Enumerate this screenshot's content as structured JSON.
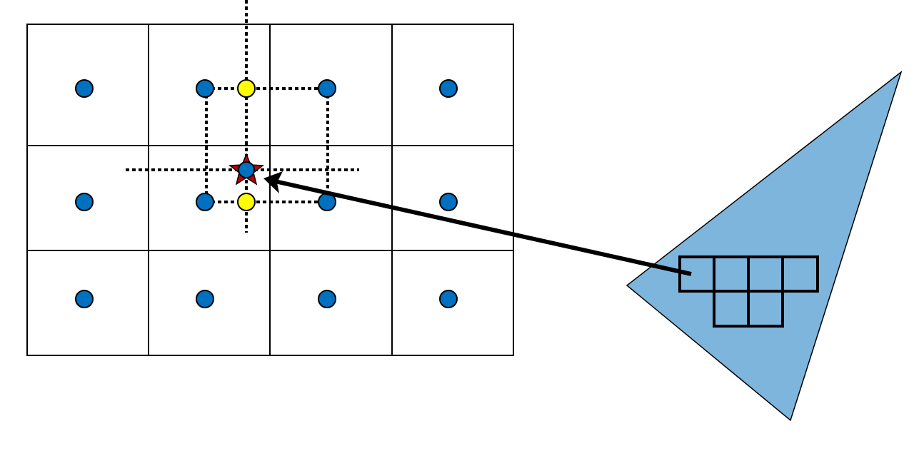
{
  "diagram": {
    "grid": {
      "rows": 3,
      "cols": 4
    },
    "colors": {
      "grid_line": "#000000",
      "sample_point": "#0070C0",
      "interp_point": "#FFFF00",
      "target_star": "#C00000",
      "triangle_fill": "#7EB5DC",
      "arrow": "#000000",
      "dotted_line": "#000000"
    },
    "icons": {
      "sample_point": "circle",
      "interp_point": "circle",
      "target_point": "star",
      "triangle": "triangle",
      "pixel_block": "square-grid"
    }
  }
}
